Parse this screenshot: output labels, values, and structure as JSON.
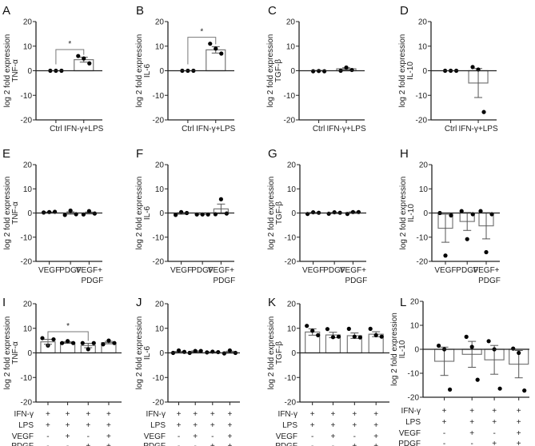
{
  "chart_data": [
    {
      "panel": "A",
      "type": "bar",
      "ylabel": [
        "log 2 fold expression",
        "TNF-α"
      ],
      "ylim": [
        -20,
        20
      ],
      "yticks": [
        20,
        10,
        0,
        -10,
        -20
      ],
      "categories": [
        [
          "Ctrl"
        ],
        [
          "IFN-γ+LPS"
        ]
      ],
      "bars": [
        {
          "mean": 0,
          "sem": 0,
          "points": [
            0,
            0,
            0
          ]
        },
        {
          "mean": 4.5,
          "sem": 1.0,
          "points": [
            6,
            5,
            3
          ]
        }
      ],
      "significance": [
        {
          "from": 0,
          "to": 1,
          "label": "*"
        }
      ]
    },
    {
      "panel": "B",
      "type": "bar",
      "ylabel": [
        "log 2 fold expression",
        "IL-6"
      ],
      "ylim": [
        -20,
        20
      ],
      "yticks": [
        20,
        10,
        0,
        -10,
        -20
      ],
      "categories": [
        [
          "Ctrl"
        ],
        [
          "IFN-γ+LPS"
        ]
      ],
      "bars": [
        {
          "mean": 0,
          "sem": 0,
          "points": [
            0,
            0,
            0
          ]
        },
        {
          "mean": 8.5,
          "sem": 1.3,
          "points": [
            11,
            9,
            7
          ]
        }
      ],
      "significance": [
        {
          "from": 0,
          "to": 1,
          "label": "*"
        }
      ]
    },
    {
      "panel": "C",
      "type": "bar",
      "ylabel": [
        "log 2 fold expression",
        "TGF-β"
      ],
      "ylim": [
        -20,
        20
      ],
      "yticks": [
        20,
        10,
        0,
        -10,
        -20
      ],
      "categories": [
        [
          "Ctrl"
        ],
        [
          "IFN-γ+LPS"
        ]
      ],
      "bars": [
        {
          "mean": 0,
          "sem": 0.1,
          "points": [
            -0.2,
            -0.1,
            -0.2
          ]
        },
        {
          "mean": 0.8,
          "sem": 0.4,
          "points": [
            0,
            1.3,
            0.3
          ]
        }
      ],
      "significance": []
    },
    {
      "panel": "D",
      "type": "bar",
      "ylabel": [
        "log 2 fold expression",
        "IL-10"
      ],
      "ylim": [
        -20,
        20
      ],
      "yticks": [
        20,
        10,
        0,
        -10,
        -20
      ],
      "categories": [
        [
          "Ctrl"
        ],
        [
          "IFN-γ+LPS"
        ]
      ],
      "bars": [
        {
          "mean": 0,
          "sem": 0,
          "points": [
            0,
            0,
            0
          ]
        },
        {
          "mean": -5,
          "sem": 5.9,
          "points": [
            1.5,
            0.5,
            -16.8
          ]
        }
      ],
      "significance": []
    },
    {
      "panel": "E",
      "type": "bar",
      "ylabel": [
        "log 2 fold expression",
        "TNF-α"
      ],
      "ylim": [
        -20,
        20
      ],
      "yticks": [
        20,
        10,
        0,
        -10,
        -20
      ],
      "categories": [
        [
          "VEGF"
        ],
        [
          "PDGF"
        ],
        [
          "VEGF+",
          "PDGF"
        ]
      ],
      "bars": [
        {
          "mean": 0.3,
          "sem": 0.1,
          "points": [
            0.2,
            0.4,
            0.5
          ]
        },
        {
          "mean": 0,
          "sem": 0.5,
          "points": [
            -0.8,
            1,
            -0.5
          ]
        },
        {
          "mean": 0,
          "sem": 0.4,
          "points": [
            -0.6,
            0.8,
            -0.2
          ]
        }
      ],
      "significance": []
    },
    {
      "panel": "F",
      "type": "bar",
      "ylabel": [
        "log 2 fold expression",
        "IL-6"
      ],
      "ylim": [
        -20,
        20
      ],
      "yticks": [
        20,
        10,
        0,
        -10,
        -20
      ],
      "categories": [
        [
          "VEGF"
        ],
        [
          "PDGF"
        ],
        [
          "VEGF+",
          "PDGF"
        ]
      ],
      "bars": [
        {
          "mean": -0.2,
          "sem": 0.3,
          "points": [
            -0.8,
            0.4,
            0
          ]
        },
        {
          "mean": -0.6,
          "sem": 0.05,
          "points": [
            -0.6,
            -0.6,
            -0.6
          ]
        },
        {
          "mean": 1.7,
          "sem": 2.0,
          "points": [
            -0.5,
            5.7,
            -0.2
          ]
        }
      ],
      "significance": []
    },
    {
      "panel": "G",
      "type": "bar",
      "ylabel": [
        "log 2 fold expression",
        "TGF-β"
      ],
      "ylim": [
        -20,
        20
      ],
      "yticks": [
        20,
        10,
        0,
        -10,
        -20
      ],
      "categories": [
        [
          "VEGF"
        ],
        [
          "PDGF"
        ],
        [
          "VEGF+",
          "PDGF"
        ]
      ],
      "bars": [
        {
          "mean": 0,
          "sem": 0.2,
          "points": [
            -0.4,
            0.3,
            0.1
          ]
        },
        {
          "mean": 0,
          "sem": 0.2,
          "points": [
            -0.3,
            0.3,
            0.1
          ]
        },
        {
          "mean": 0.2,
          "sem": 0.3,
          "points": [
            -0.4,
            0.4,
            0.4
          ]
        }
      ],
      "significance": []
    },
    {
      "panel": "H",
      "type": "bar",
      "ylabel": [
        "log 2 fold expression",
        "IL-10"
      ],
      "ylim": [
        -20,
        20
      ],
      "yticks": [
        20,
        10,
        0,
        -10,
        -20
      ],
      "categories": [
        [
          "VEGF"
        ],
        [
          "PDGF"
        ],
        [
          "VEGF+",
          "PDGF"
        ]
      ],
      "bars": [
        {
          "mean": -6.3,
          "sem": 5.8,
          "points": [
            0,
            -17.6,
            -1
          ]
        },
        {
          "mean": -3.5,
          "sem": 3.7,
          "points": [
            0.8,
            -10.8,
            -0.5
          ]
        },
        {
          "mean": -5.3,
          "sem": 5.4,
          "points": [
            0.8,
            -16.2,
            -0.5
          ]
        }
      ],
      "significance": []
    },
    {
      "panel": "I",
      "type": "bar",
      "ylabel": [
        "log 2 fold expression",
        "TNF-α"
      ],
      "ylim": [
        -20,
        20
      ],
      "yticks": [
        20,
        10,
        0,
        -10,
        -20
      ],
      "conditions": {
        "rows": [
          "IFN-γ",
          "LPS",
          "VEGF",
          "PDGF"
        ],
        "signs": [
          [
            "+",
            "+",
            "-",
            "-"
          ],
          [
            "+",
            "+",
            "+",
            "-"
          ],
          [
            "+",
            "+",
            "-",
            "+"
          ],
          [
            "+",
            "+",
            "+",
            "+"
          ]
        ]
      },
      "bars": [
        {
          "mean": 4.5,
          "sem": 1.0,
          "points": [
            6,
            3,
            5.5
          ]
        },
        {
          "mean": 4.2,
          "sem": 0.3,
          "points": [
            4,
            4.8,
            4
          ]
        },
        {
          "mean": 3.0,
          "sem": 0.9,
          "points": [
            4,
            1.5,
            4
          ]
        },
        {
          "mean": 4.2,
          "sem": 0.5,
          "points": [
            3.5,
            5,
            4
          ]
        }
      ],
      "significance": [
        {
          "from": 0,
          "to": 2,
          "label": "*"
        }
      ]
    },
    {
      "panel": "J",
      "type": "bar",
      "ylabel": [
        "log 2 fold expression",
        "IL-6"
      ],
      "ylim": [
        -20,
        20
      ],
      "yticks": [
        20,
        10,
        0,
        -10,
        -20
      ],
      "conditions": {
        "rows": [
          "IFN-γ",
          "LPS",
          "VEGF",
          "PDGF"
        ],
        "signs": [
          [
            "+",
            "+",
            "-",
            "-"
          ],
          [
            "+",
            "+",
            "+",
            "-"
          ],
          [
            "+",
            "+",
            "-",
            "+"
          ],
          [
            "+",
            "+",
            "+",
            "+"
          ]
        ]
      },
      "bars": [
        {
          "mean": 0.3,
          "sem": 0.3,
          "points": [
            0,
            1,
            0.4
          ]
        },
        {
          "mean": 0.5,
          "sem": 0.3,
          "points": [
            0,
            0.8,
            0.8
          ]
        },
        {
          "mean": 0.3,
          "sem": 0.1,
          "points": [
            0.2,
            0.5,
            0.3
          ]
        },
        {
          "mean": 0.3,
          "sem": 0.4,
          "points": [
            -0.2,
            1,
            0
          ]
        }
      ],
      "significance": []
    },
    {
      "panel": "K",
      "type": "bar",
      "ylabel": [
        "log 2 fold expression",
        "TGF-β"
      ],
      "ylim": [
        -20,
        20
      ],
      "yticks": [
        20,
        10,
        0,
        -10,
        -20
      ],
      "conditions": {
        "rows": [
          "IFN-γ",
          "LPS",
          "VEGF",
          "PDGF"
        ],
        "signs": [
          [
            "+",
            "+",
            "-",
            "-"
          ],
          [
            "+",
            "+",
            "+",
            "-"
          ],
          [
            "+",
            "+",
            "-",
            "+"
          ],
          [
            "+",
            "+",
            "+",
            "+"
          ]
        ]
      },
      "bars": [
        {
          "mean": 8.5,
          "sem": 1.3,
          "points": [
            11,
            9,
            7.2
          ]
        },
        {
          "mean": 7.3,
          "sem": 1.1,
          "points": [
            9.7,
            6.4,
            6.6
          ]
        },
        {
          "mean": 7.0,
          "sem": 1.1,
          "points": [
            9.8,
            6.6,
            6.3
          ]
        },
        {
          "mean": 7.6,
          "sem": 1.0,
          "points": [
            9.8,
            7.2,
            6.6
          ]
        }
      ],
      "significance": []
    },
    {
      "panel": "L",
      "type": "bar",
      "ylabel": [
        "log 2 fold expression",
        "IL-10"
      ],
      "ylim": [
        -20,
        20
      ],
      "yticks": [
        20,
        10,
        0,
        -10,
        -20
      ],
      "conditions": {
        "rows": [
          "IFN-γ",
          "LPS",
          "VEGF",
          "PDGF"
        ],
        "signs": [
          [
            "+",
            "+",
            "-",
            "-"
          ],
          [
            "+",
            "+",
            "+",
            "-"
          ],
          [
            "+",
            "+",
            "-",
            "+"
          ],
          [
            "+",
            "+",
            "+",
            "+"
          ]
        ]
      },
      "bars": [
        {
          "mean": -5,
          "sem": 5.9,
          "points": [
            1.5,
            0,
            -16.8
          ]
        },
        {
          "mean": -2.1,
          "sem": 5.4,
          "points": [
            5.2,
            1,
            -12.7
          ]
        },
        {
          "mean": -4.4,
          "sem": 6.0,
          "points": [
            3.4,
            0,
            -16.4
          ]
        },
        {
          "mean": -6.2,
          "sem": 5.7,
          "points": [
            0.3,
            -1.5,
            -17.2
          ]
        }
      ],
      "significance": []
    }
  ]
}
